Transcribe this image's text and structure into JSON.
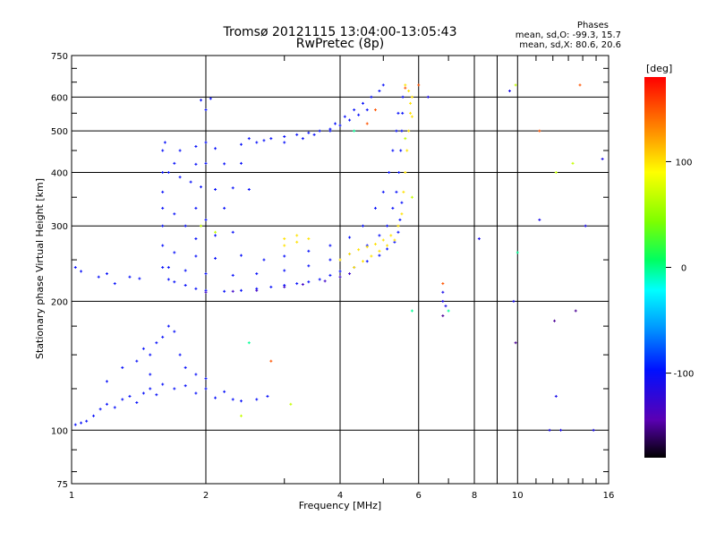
{
  "chart_data": {
    "type": "scatter",
    "title": "Tromsø 20121115 13:04:00-13:05:43",
    "subtitle": "RwPretec (8p)",
    "xlabel": "Frequency [MHz]",
    "ylabel": "Stationary phase Virtual Height [km]",
    "x_scale": "log",
    "y_scale": "log",
    "xlim": [
      1,
      16
    ],
    "ylim": [
      75,
      750
    ],
    "x_ticks": [
      1,
      2,
      4,
      6,
      8,
      10,
      16
    ],
    "y_ticks": [
      75,
      100,
      200,
      300,
      400,
      500,
      600,
      750
    ],
    "grid": true,
    "phase_stats": {
      "heading": "Phases",
      "line_o": "mean, sd,O: -99.3, 15.7",
      "line_x": "mean, sd,X: 80.6, 20.6"
    },
    "colorbar": {
      "label": "[deg]",
      "ticks": [
        100,
        0,
        -100
      ],
      "range": [
        -180,
        180
      ]
    },
    "colors": {
      "o_mode": "#1e2cff",
      "x_mode": "#d8ee1a",
      "grid": "#000000"
    },
    "series": [
      {
        "phase": -100,
        "points": [
          [
            1.02,
            103
          ],
          [
            1.05,
            104
          ],
          [
            1.08,
            105
          ],
          [
            1.12,
            108
          ],
          [
            1.16,
            112
          ],
          [
            1.2,
            115
          ],
          [
            1.25,
            113
          ],
          [
            1.3,
            118
          ],
          [
            1.35,
            120
          ],
          [
            1.4,
            116
          ],
          [
            1.45,
            122
          ],
          [
            1.5,
            125
          ],
          [
            1.55,
            121
          ],
          [
            1.6,
            128
          ],
          [
            1.7,
            125
          ],
          [
            1.8,
            127
          ],
          [
            1.9,
            122
          ],
          [
            2.0,
            125
          ],
          [
            2.1,
            119
          ],
          [
            2.2,
            123
          ],
          [
            2.3,
            118
          ],
          [
            2.4,
            117
          ],
          [
            2.6,
            118
          ],
          [
            2.75,
            120
          ],
          [
            1.2,
            130
          ],
          [
            1.3,
            140
          ],
          [
            1.4,
            145
          ],
          [
            1.5,
            150
          ],
          [
            1.55,
            160
          ],
          [
            1.6,
            165
          ],
          [
            1.65,
            175
          ],
          [
            1.7,
            170
          ],
          [
            1.75,
            150
          ],
          [
            1.8,
            140
          ],
          [
            1.9,
            135
          ],
          [
            2.0,
            132
          ],
          [
            1.5,
            135
          ],
          [
            1.45,
            155
          ],
          [
            1.02,
            240
          ],
          [
            1.05,
            235
          ],
          [
            1.15,
            228
          ],
          [
            1.2,
            232
          ],
          [
            1.25,
            220
          ],
          [
            1.35,
            228
          ],
          [
            1.42,
            226
          ],
          [
            1.6,
            240
          ],
          [
            1.6,
            270
          ],
          [
            1.6,
            300
          ],
          [
            1.6,
            330
          ],
          [
            1.6,
            360
          ],
          [
            1.6,
            400
          ],
          [
            1.6,
            450
          ],
          [
            1.62,
            470
          ],
          [
            1.65,
            225
          ],
          [
            1.7,
            222
          ],
          [
            1.8,
            218
          ],
          [
            1.9,
            214
          ],
          [
            2.0,
            212
          ],
          [
            2.2,
            211
          ],
          [
            2.4,
            212
          ],
          [
            2.6,
            214
          ],
          [
            2.8,
            216
          ],
          [
            3.0,
            218
          ],
          [
            3.2,
            220
          ],
          [
            3.4,
            222
          ],
          [
            3.6,
            225
          ],
          [
            3.8,
            230
          ],
          [
            4.0,
            235
          ],
          [
            4.3,
            240
          ],
          [
            4.6,
            248
          ],
          [
            4.9,
            256
          ],
          [
            5.1,
            265
          ],
          [
            5.3,
            275
          ],
          [
            5.4,
            290
          ],
          [
            5.45,
            310
          ],
          [
            5.5,
            340
          ],
          [
            1.65,
            240
          ],
          [
            1.8,
            236
          ],
          [
            2.0,
            232
          ],
          [
            2.3,
            230
          ],
          [
            2.6,
            232
          ],
          [
            3.0,
            236
          ],
          [
            3.4,
            242
          ],
          [
            3.8,
            250
          ],
          [
            4.2,
            258
          ],
          [
            4.6,
            270
          ],
          [
            4.9,
            285
          ],
          [
            5.1,
            300
          ],
          [
            5.25,
            330
          ],
          [
            5.35,
            360
          ],
          [
            5.42,
            400
          ],
          [
            5.47,
            450
          ],
          [
            5.5,
            500
          ],
          [
            5.52,
            550
          ],
          [
            5.53,
            600
          ],
          [
            1.7,
            260
          ],
          [
            1.9,
            255
          ],
          [
            2.1,
            252
          ],
          [
            2.4,
            256
          ],
          [
            2.7,
            250
          ],
          [
            3.0,
            255
          ],
          [
            3.4,
            262
          ],
          [
            3.8,
            270
          ],
          [
            4.2,
            282
          ],
          [
            4.5,
            300
          ],
          [
            4.8,
            330
          ],
          [
            5.0,
            360
          ],
          [
            5.15,
            400
          ],
          [
            5.25,
            450
          ],
          [
            5.35,
            500
          ],
          [
            5.4,
            550
          ],
          [
            1.9,
            280
          ],
          [
            2.1,
            285
          ],
          [
            2.3,
            290
          ],
          [
            1.8,
            300
          ],
          [
            2.0,
            310
          ],
          [
            1.7,
            320
          ],
          [
            1.65,
            400
          ],
          [
            1.75,
            390
          ],
          [
            1.85,
            380
          ],
          [
            1.95,
            370
          ],
          [
            2.1,
            365
          ],
          [
            2.3,
            368
          ],
          [
            2.5,
            365
          ],
          [
            1.7,
            420
          ],
          [
            1.9,
            418
          ],
          [
            2.0,
            420
          ],
          [
            2.2,
            419
          ],
          [
            2.4,
            420
          ],
          [
            1.75,
            450
          ],
          [
            1.9,
            460
          ],
          [
            2.0,
            470
          ],
          [
            2.1,
            455
          ],
          [
            2.4,
            465
          ],
          [
            2.6,
            470
          ],
          [
            2.8,
            480
          ],
          [
            3.0,
            485
          ],
          [
            3.2,
            490
          ],
          [
            3.4,
            495
          ],
          [
            3.6,
            500
          ],
          [
            3.8,
            505
          ],
          [
            2.5,
            480
          ],
          [
            2.7,
            475
          ],
          [
            3.0,
            470
          ],
          [
            3.3,
            480
          ],
          [
            3.5,
            490
          ],
          [
            3.9,
            520
          ],
          [
            4.1,
            540
          ],
          [
            4.3,
            560
          ],
          [
            4.5,
            580
          ],
          [
            4.7,
            600
          ],
          [
            4.9,
            620
          ],
          [
            5.0,
            640
          ],
          [
            3.8,
            500
          ],
          [
            4.0,
            515
          ],
          [
            4.2,
            530
          ],
          [
            4.4,
            545
          ],
          [
            4.6,
            560
          ],
          [
            1.95,
            590
          ],
          [
            2.05,
            595
          ],
          [
            2.0,
            560
          ],
          [
            1.9,
            330
          ],
          [
            2.2,
            330
          ]
        ]
      },
      {
        "phase": -130,
        "points": [
          [
            2.0,
            210
          ],
          [
            2.3,
            211
          ],
          [
            2.6,
            212
          ],
          [
            3.0,
            216
          ],
          [
            3.3,
            219
          ],
          [
            3.7,
            223
          ],
          [
            4.0,
            228
          ],
          [
            4.2,
            232
          ]
        ]
      },
      {
        "phase": 100,
        "points": [
          [
            3.0,
            280
          ],
          [
            3.2,
            285
          ],
          [
            3.4,
            280
          ],
          [
            3.0,
            270
          ],
          [
            3.2,
            275
          ],
          [
            4.0,
            250
          ],
          [
            4.2,
            258
          ],
          [
            4.4,
            264
          ],
          [
            4.6,
            268
          ],
          [
            4.8,
            272
          ],
          [
            5.0,
            278
          ],
          [
            5.2,
            285
          ],
          [
            5.4,
            300
          ],
          [
            5.5,
            320
          ],
          [
            5.55,
            360
          ],
          [
            5.6,
            400
          ],
          [
            5.65,
            450
          ],
          [
            5.7,
            500
          ],
          [
            5.75,
            550
          ],
          [
            5.8,
            600
          ],
          [
            4.3,
            240
          ],
          [
            4.5,
            248
          ],
          [
            4.7,
            255
          ],
          [
            4.9,
            262
          ],
          [
            5.1,
            270
          ],
          [
            5.3,
            278
          ],
          [
            5.6,
            640
          ],
          [
            5.7,
            620
          ],
          [
            5.75,
            580
          ],
          [
            5.8,
            540
          ]
        ]
      },
      {
        "phase": 70,
        "points": [
          [
            1.95,
            300
          ],
          [
            2.1,
            290
          ],
          [
            5.6,
            480
          ],
          [
            5.8,
            350
          ],
          [
            3.1,
            115
          ],
          [
            2.4,
            108
          ],
          [
            9.9,
            640
          ],
          [
            12.2,
            400
          ],
          [
            13.3,
            420
          ]
        ]
      },
      {
        "phase": 150,
        "points": [
          [
            4.6,
            520
          ],
          [
            4.8,
            560
          ],
          [
            5.6,
            630
          ],
          [
            6.0,
            640
          ],
          [
            2.8,
            145
          ],
          [
            6.8,
            220
          ],
          [
            11.2,
            500
          ],
          [
            13.8,
            640
          ]
        ]
      },
      {
        "phase": 0,
        "points": [
          [
            4.3,
            500
          ],
          [
            5.8,
            190
          ],
          [
            7.0,
            190
          ],
          [
            2.5,
            160
          ],
          [
            10.0,
            260
          ]
        ]
      },
      {
        "phase": -110,
        "points": [
          [
            6.8,
            210
          ],
          [
            6.8,
            200
          ],
          [
            6.9,
            195
          ],
          [
            9.8,
            200
          ],
          [
            11.2,
            310
          ],
          [
            11.8,
            100
          ],
          [
            12.2,
            120
          ],
          [
            12.5,
            100
          ],
          [
            14.2,
            300
          ],
          [
            14.8,
            100
          ],
          [
            15.5,
            430
          ],
          [
            6.3,
            600
          ],
          [
            8.2,
            280
          ],
          [
            9.6,
            620
          ]
        ]
      },
      {
        "phase": -150,
        "points": [
          [
            6.8,
            185
          ],
          [
            9.9,
            160
          ],
          [
            12.1,
            180
          ],
          [
            13.5,
            190
          ]
        ]
      }
    ]
  }
}
